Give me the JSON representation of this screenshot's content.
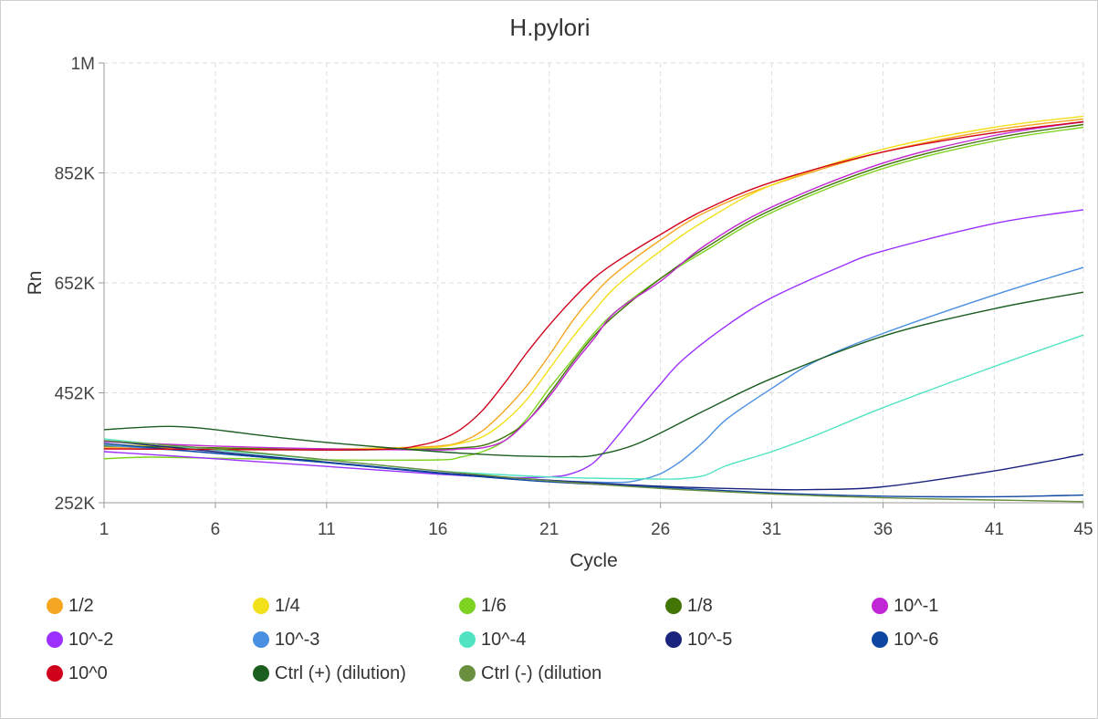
{
  "chart_data": {
    "type": "line",
    "title": "H.pylori",
    "xlabel": "Cycle",
    "ylabel": "Rn",
    "xlim": [
      1,
      45
    ],
    "ylim": [
      252000,
      1052000
    ],
    "x_ticks": [
      1,
      6,
      11,
      16,
      21,
      26,
      31,
      36,
      41,
      45
    ],
    "y_ticks": [
      {
        "value": 252000,
        "label": "252K"
      },
      {
        "value": 452000,
        "label": "452K"
      },
      {
        "value": 652000,
        "label": "652K"
      },
      {
        "value": 852000,
        "label": "852K"
      },
      {
        "value": 1052000,
        "label": "1M"
      }
    ],
    "grid": true,
    "legend_position": "bottom",
    "series": [
      {
        "name": "1/2",
        "color": "#f5a623",
        "points": [
          [
            1,
            352
          ],
          [
            6,
            351
          ],
          [
            11,
            350
          ],
          [
            14,
            352
          ],
          [
            16,
            355
          ],
          [
            17,
            362
          ],
          [
            18,
            383
          ],
          [
            19,
            420
          ],
          [
            20,
            465
          ],
          [
            21,
            520
          ],
          [
            22,
            580
          ],
          [
            23,
            630
          ],
          [
            24,
            670
          ],
          [
            26,
            730
          ],
          [
            28,
            780
          ],
          [
            31,
            830
          ],
          [
            36,
            890
          ],
          [
            41,
            930
          ],
          [
            45,
            950
          ]
        ]
      },
      {
        "name": "1/4",
        "color": "#f2e01a",
        "points": [
          [
            1,
            358
          ],
          [
            6,
            352
          ],
          [
            11,
            350
          ],
          [
            15,
            352
          ],
          [
            16,
            353
          ],
          [
            17,
            360
          ],
          [
            18,
            372
          ],
          [
            19,
            400
          ],
          [
            20,
            440
          ],
          [
            21,
            495
          ],
          [
            22,
            550
          ],
          [
            23,
            600
          ],
          [
            24,
            645
          ],
          [
            26,
            710
          ],
          [
            28,
            765
          ],
          [
            31,
            830
          ],
          [
            36,
            895
          ],
          [
            41,
            935
          ],
          [
            45,
            955
          ]
        ]
      },
      {
        "name": "1/6",
        "color": "#7ed321",
        "points": [
          [
            1,
            332
          ],
          [
            3,
            335
          ],
          [
            6,
            333
          ],
          [
            11,
            330
          ],
          [
            16,
            330
          ],
          [
            17,
            335
          ],
          [
            18,
            345
          ],
          [
            19,
            365
          ],
          [
            20,
            405
          ],
          [
            21,
            460
          ],
          [
            22,
            510
          ],
          [
            23,
            560
          ],
          [
            24,
            600
          ],
          [
            26,
            660
          ],
          [
            28,
            710
          ],
          [
            31,
            780
          ],
          [
            36,
            860
          ],
          [
            41,
            910
          ],
          [
            45,
            935
          ]
        ]
      },
      {
        "name": "1/8",
        "color": "#417505",
        "points": [
          [
            1,
            355
          ],
          [
            6,
            352
          ],
          [
            11,
            348
          ],
          [
            16,
            350
          ],
          [
            17,
            352
          ],
          [
            18,
            356
          ],
          [
            19,
            372
          ],
          [
            20,
            400
          ],
          [
            21,
            450
          ],
          [
            22,
            505
          ],
          [
            23,
            555
          ],
          [
            24,
            595
          ],
          [
            26,
            660
          ],
          [
            28,
            715
          ],
          [
            31,
            785
          ],
          [
            36,
            865
          ],
          [
            41,
            915
          ],
          [
            45,
            940
          ]
        ]
      },
      {
        "name": "10^-1",
        "color": "#c026d3",
        "points": [
          [
            1,
            363
          ],
          [
            6,
            355
          ],
          [
            11,
            350
          ],
          [
            16,
            348
          ],
          [
            17,
            350
          ],
          [
            18,
            352
          ],
          [
            19,
            365
          ],
          [
            20,
            400
          ],
          [
            21,
            445
          ],
          [
            22,
            500
          ],
          [
            23,
            550
          ],
          [
            24,
            600
          ],
          [
            26,
            655
          ],
          [
            28,
            720
          ],
          [
            31,
            790
          ],
          [
            36,
            870
          ],
          [
            41,
            920
          ],
          [
            45,
            945
          ]
        ]
      },
      {
        "name": "10^-2",
        "color": "#9b30ff",
        "points": [
          [
            1,
            345
          ],
          [
            6,
            332
          ],
          [
            11,
            318
          ],
          [
            16,
            304
          ],
          [
            19,
            298
          ],
          [
            21,
            299
          ],
          [
            22,
            305
          ],
          [
            23,
            325
          ],
          [
            24,
            370
          ],
          [
            25,
            420
          ],
          [
            26,
            468
          ],
          [
            27,
            512
          ],
          [
            29,
            575
          ],
          [
            31,
            625
          ],
          [
            34,
            680
          ],
          [
            36,
            710
          ],
          [
            41,
            760
          ],
          [
            45,
            785
          ]
        ]
      },
      {
        "name": "10^-3",
        "color": "#4a90e2",
        "points": [
          [
            1,
            357
          ],
          [
            6,
            342
          ],
          [
            11,
            325
          ],
          [
            16,
            306
          ],
          [
            21,
            293
          ],
          [
            24,
            289
          ],
          [
            25,
            293
          ],
          [
            26,
            305
          ],
          [
            27,
            330
          ],
          [
            28,
            365
          ],
          [
            29,
            405
          ],
          [
            31,
            460
          ],
          [
            33,
            510
          ],
          [
            36,
            560
          ],
          [
            41,
            630
          ],
          [
            45,
            680
          ]
        ]
      },
      {
        "name": "10^-4",
        "color": "#50e3c2",
        "points": [
          [
            1,
            368
          ],
          [
            6,
            348
          ],
          [
            11,
            330
          ],
          [
            16,
            310
          ],
          [
            21,
            299
          ],
          [
            24,
            296
          ],
          [
            26,
            295
          ],
          [
            27,
            296
          ],
          [
            28,
            302
          ],
          [
            29,
            320
          ],
          [
            31,
            345
          ],
          [
            33,
            375
          ],
          [
            36,
            425
          ],
          [
            41,
            500
          ],
          [
            45,
            557
          ]
        ]
      },
      {
        "name": "10^-5",
        "color": "#1a237e",
        "points": [
          [
            1,
            365
          ],
          [
            6,
            345
          ],
          [
            11,
            326
          ],
          [
            16,
            307
          ],
          [
            21,
            293
          ],
          [
            26,
            282
          ],
          [
            31,
            276
          ],
          [
            33,
            276
          ],
          [
            36,
            281
          ],
          [
            41,
            310
          ],
          [
            45,
            340
          ]
        ]
      },
      {
        "name": "10^-6",
        "color": "#0d47a1",
        "points": [
          [
            1,
            360
          ],
          [
            6,
            342
          ],
          [
            11,
            325
          ],
          [
            16,
            306
          ],
          [
            21,
            290
          ],
          [
            26,
            280
          ],
          [
            31,
            270
          ],
          [
            36,
            264
          ],
          [
            41,
            263
          ],
          [
            45,
            266
          ]
        ]
      },
      {
        "name": "10^0",
        "color": "#d0021b",
        "points": [
          [
            1,
            350
          ],
          [
            6,
            349
          ],
          [
            11,
            348
          ],
          [
            14,
            350
          ],
          [
            15,
            355
          ],
          [
            16,
            365
          ],
          [
            17,
            385
          ],
          [
            18,
            420
          ],
          [
            19,
            470
          ],
          [
            20,
            525
          ],
          [
            21,
            575
          ],
          [
            22,
            620
          ],
          [
            23,
            660
          ],
          [
            24,
            690
          ],
          [
            26,
            740
          ],
          [
            28,
            785
          ],
          [
            31,
            835
          ],
          [
            36,
            890
          ],
          [
            41,
            925
          ],
          [
            45,
            945
          ]
        ]
      },
      {
        "name": "Ctrl (+) (dilution)",
        "color": "#1b5e20",
        "points": [
          [
            1,
            385
          ],
          [
            3,
            390
          ],
          [
            4,
            391
          ],
          [
            5,
            389
          ],
          [
            6,
            385
          ],
          [
            9,
            370
          ],
          [
            12,
            358
          ],
          [
            16,
            345
          ],
          [
            19,
            338
          ],
          [
            21,
            336
          ],
          [
            22,
            336
          ],
          [
            23,
            338
          ],
          [
            25,
            360
          ],
          [
            28,
            420
          ],
          [
            31,
            478
          ],
          [
            36,
            555
          ],
          [
            41,
            605
          ],
          [
            45,
            635
          ]
        ]
      },
      {
        "name": "Ctrl (-) (dilution",
        "color": "#6a8f3f",
        "points": [
          [
            1,
            365
          ],
          [
            6,
            350
          ],
          [
            11,
            330
          ],
          [
            16,
            310
          ],
          [
            21,
            292
          ],
          [
            26,
            278
          ],
          [
            31,
            268
          ],
          [
            36,
            261
          ],
          [
            41,
            257
          ],
          [
            45,
            254
          ]
        ]
      }
    ]
  }
}
